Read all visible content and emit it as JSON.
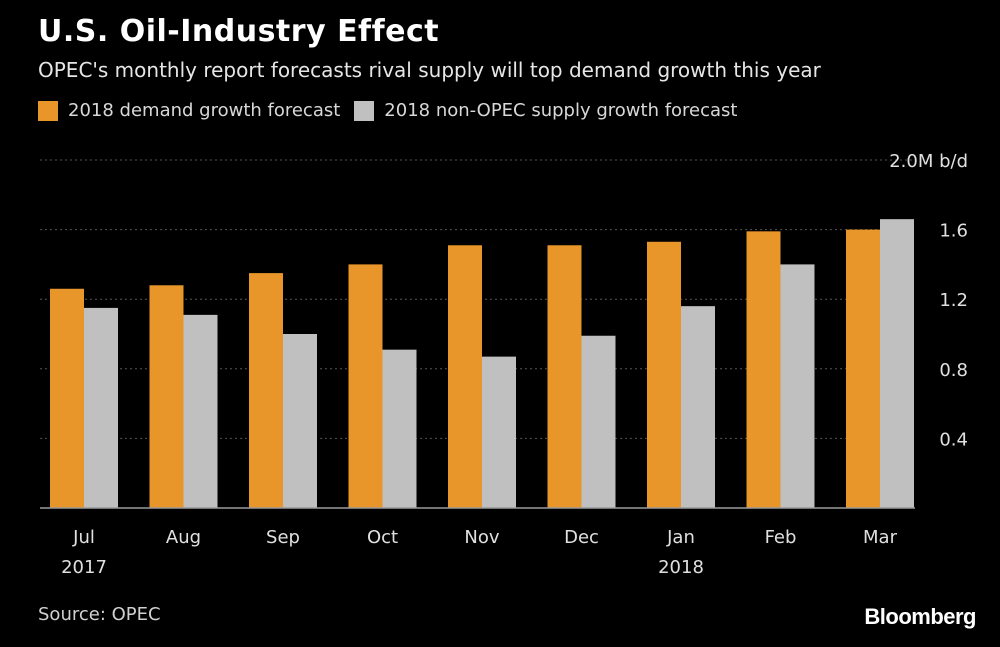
{
  "header": {
    "title": "U.S. Oil-Industry Effect",
    "subtitle": "OPEC's monthly report forecasts rival supply will top demand growth this year"
  },
  "footer": {
    "source": "Source: OPEC",
    "brand": "Bloomberg"
  },
  "colors": {
    "demand": "#e8952a",
    "supply": "#c0c0c0",
    "grid": "#555555",
    "text": "#e0e0e0"
  },
  "chart_data": {
    "type": "bar",
    "unit_label": "2.0M b/d",
    "categories": [
      "Jul",
      "Aug",
      "Sep",
      "Oct",
      "Nov",
      "Dec",
      "Jan",
      "Feb",
      "Mar"
    ],
    "category_sublabels": [
      "2017",
      "",
      "",
      "",
      "",
      "",
      "2018",
      "",
      ""
    ],
    "series": [
      {
        "name": "2018 demand growth forecast",
        "values": [
          1.26,
          1.28,
          1.35,
          1.4,
          1.51,
          1.51,
          1.53,
          1.59,
          1.6
        ]
      },
      {
        "name": "2018 non-OPEC supply growth forecast",
        "values": [
          1.15,
          1.11,
          1.0,
          0.91,
          0.87,
          0.99,
          1.16,
          1.4,
          1.66
        ]
      }
    ],
    "ylim": [
      0,
      2.0
    ],
    "yticks": [
      0.4,
      0.8,
      1.2,
      1.6
    ],
    "ytick_labels": [
      "0.4",
      "0.8",
      "1.2",
      "1.6"
    ],
    "grid": true,
    "legend_position": "top-left"
  }
}
